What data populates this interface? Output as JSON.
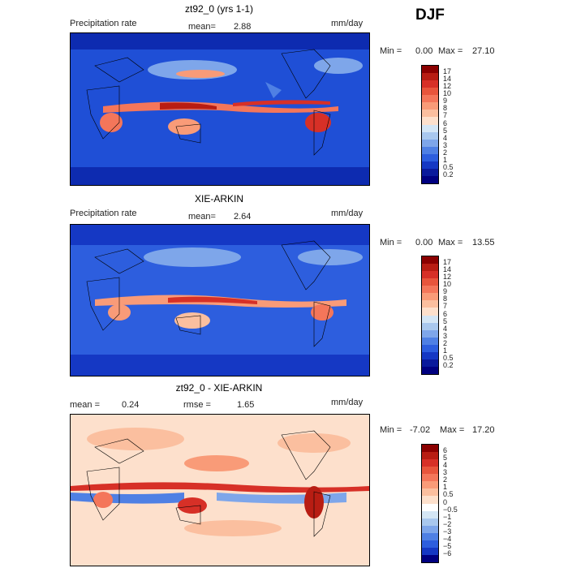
{
  "season": "DJF",
  "panels": [
    {
      "title": "zt92_0 (yrs 1-1)",
      "left_label": "Precipitation rate",
      "stat_label": "mean=",
      "stat_value": "2.88",
      "units": "mm/day",
      "min_label": "Min =",
      "min_value": "0.00",
      "max_label": "Max =",
      "max_value": "27.10",
      "colorbar_ticks": [
        "17",
        "14",
        "12",
        "10",
        "9",
        "8",
        "7",
        "6",
        "5",
        "4",
        "3",
        "2",
        "1",
        "0.5",
        "0.2"
      ],
      "colorbar_colors": [
        "#8b0000",
        "#b81d13",
        "#d73027",
        "#e8553c",
        "#f4765a",
        "#f99b78",
        "#fbbf9f",
        "#fde0cc",
        "#d4e6f5",
        "#a9c8ee",
        "#7ea6ea",
        "#4f80e4",
        "#2d5ede",
        "#1538c4",
        "#0a1a9c",
        "#000080"
      ]
    },
    {
      "title": "XIE-ARKIN",
      "left_label": "Precipitation rate",
      "stat_label": "mean=",
      "stat_value": "2.64",
      "units": "mm/day",
      "min_label": "Min =",
      "min_value": "0.00",
      "max_label": "Max =",
      "max_value": "13.55",
      "colorbar_ticks": [
        "17",
        "14",
        "12",
        "10",
        "9",
        "8",
        "7",
        "6",
        "5",
        "4",
        "3",
        "2",
        "1",
        "0.5",
        "0.2"
      ],
      "colorbar_colors": [
        "#8b0000",
        "#b81d13",
        "#d73027",
        "#e8553c",
        "#f4765a",
        "#f99b78",
        "#fbbf9f",
        "#fde0cc",
        "#d4e6f5",
        "#a9c8ee",
        "#7ea6ea",
        "#4f80e4",
        "#2d5ede",
        "#1538c4",
        "#0a1a9c",
        "#000080"
      ]
    },
    {
      "title": "zt92_0 - XIE-ARKIN",
      "left_label": "mean =",
      "left_value": "0.24",
      "stat_label": "rmse =",
      "stat_value": "1.65",
      "units": "mm/day",
      "min_label": "Min =",
      "min_value": "-7.02",
      "max_label": "Max =",
      "max_value": "17.20",
      "colorbar_ticks": [
        "6",
        "5",
        "4",
        "3",
        "2",
        "1",
        "0.5",
        "0",
        "−0.5",
        "−1",
        "−2",
        "−3",
        "−4",
        "−5",
        "−6"
      ],
      "colorbar_colors": [
        "#8b0000",
        "#b81d13",
        "#d73027",
        "#e8553c",
        "#f4765a",
        "#f99b78",
        "#fbbf9f",
        "#fde0cc",
        "#ffffff",
        "#d4e6f5",
        "#a9c8ee",
        "#7ea6ea",
        "#4f80e4",
        "#2d5ede",
        "#1538c4",
        "#000080"
      ]
    }
  ]
}
